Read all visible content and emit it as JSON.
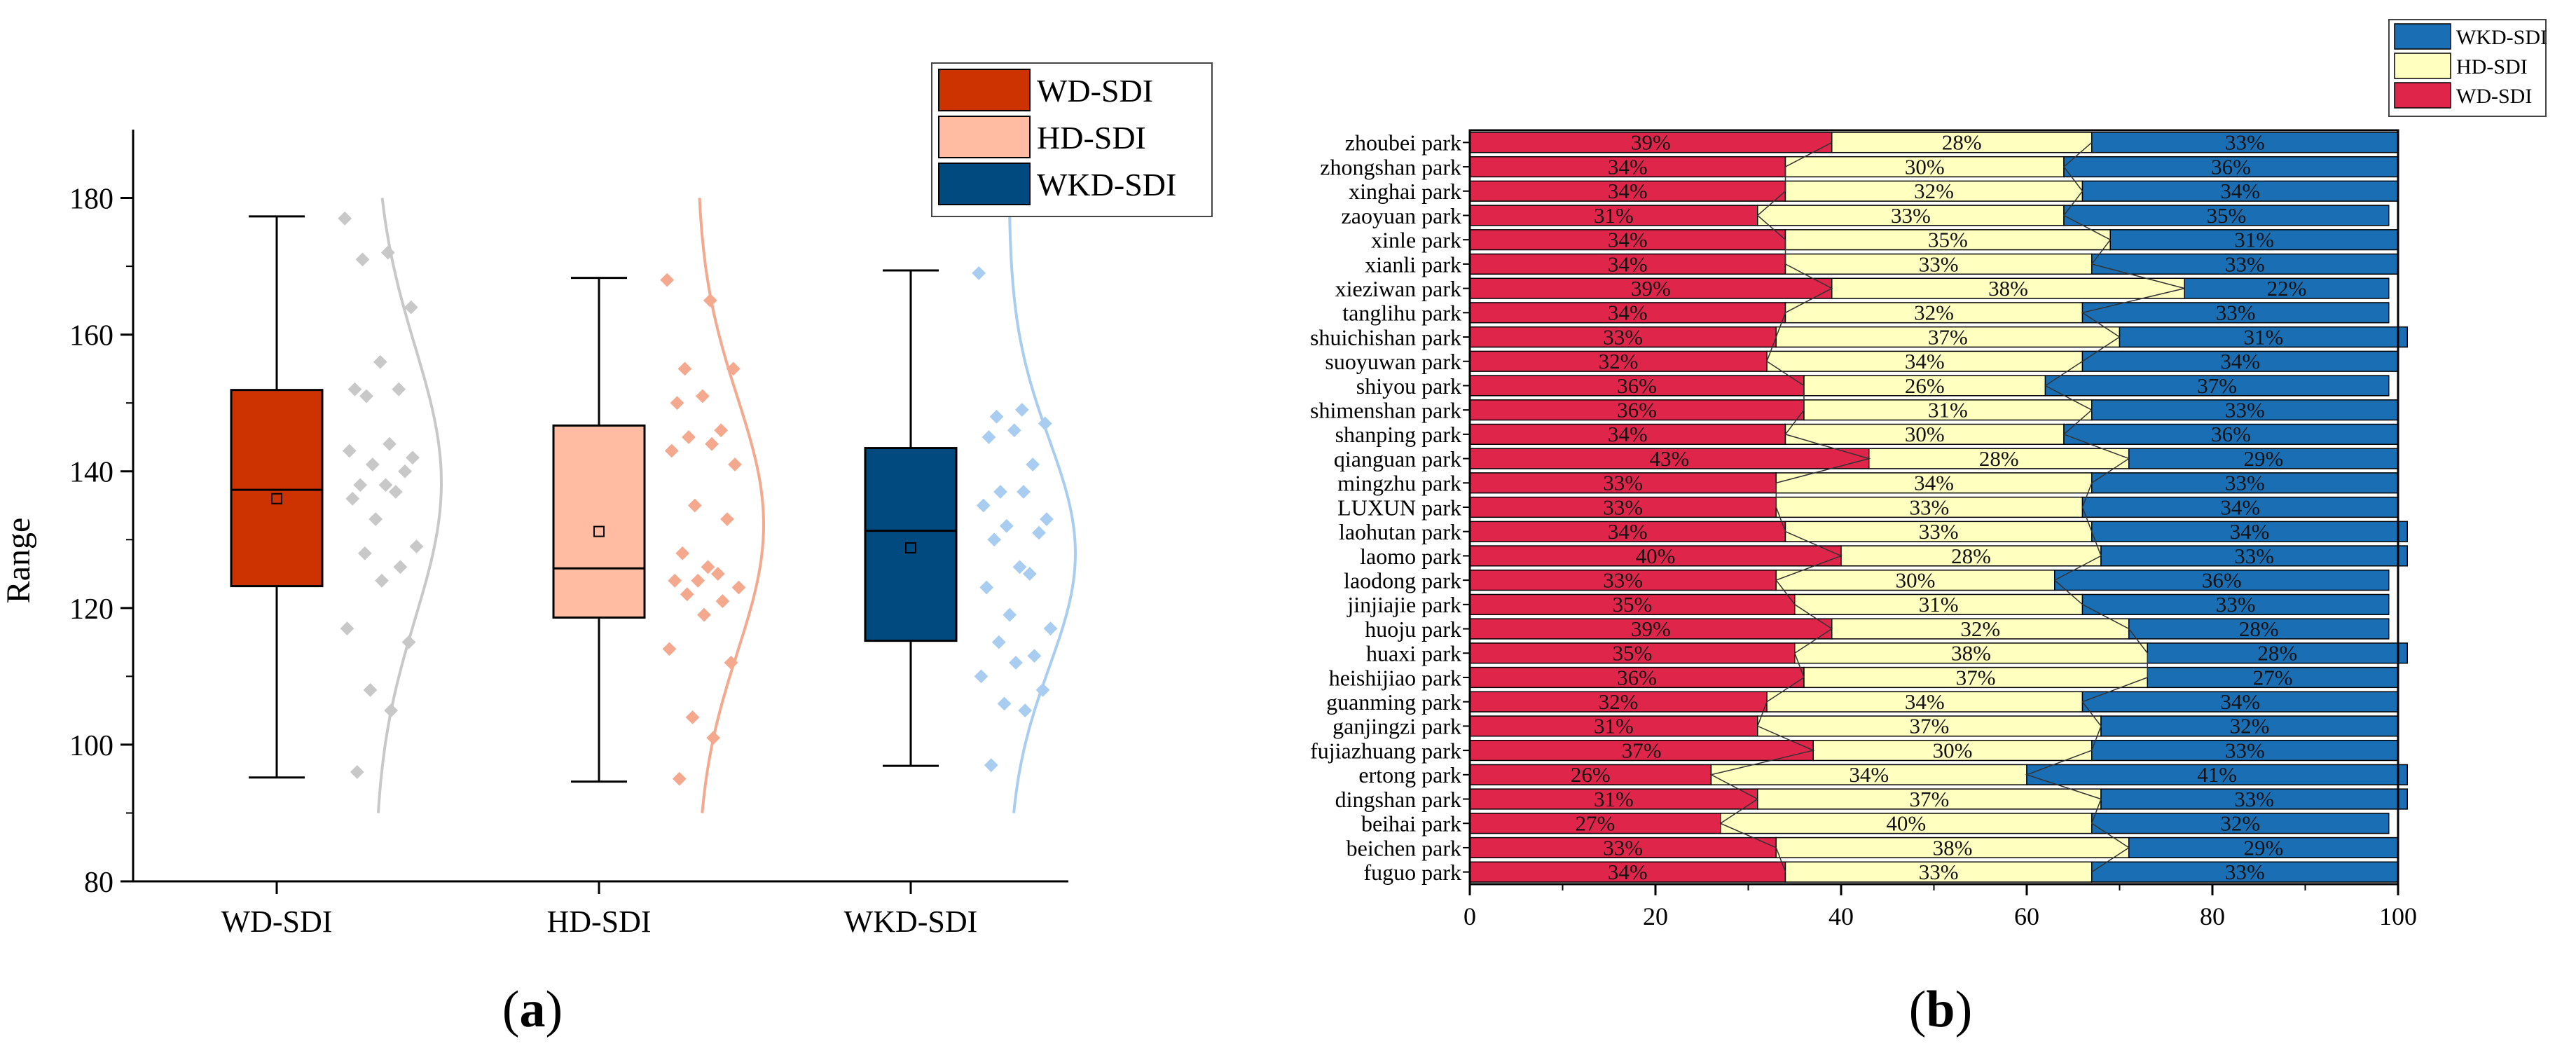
{
  "panel_labels": {
    "a": "a",
    "b": "b"
  },
  "chart_data": [
    {
      "type": "box",
      "ylabel": "Range",
      "ylim": [
        80,
        190
      ],
      "yticks": [
        80,
        100,
        120,
        140,
        160,
        180
      ],
      "categories": [
        "WD-SDI",
        "HD-SDI",
        "WKD-SDI"
      ],
      "legend": [
        "WD-SDI",
        "HD-SDI",
        "WKD-SDI"
      ],
      "legend_position": "top-right",
      "colors": {
        "box_fill": [
          "#cc3300",
          "#ffbca3",
          "#004a80"
        ],
        "scatter": [
          "#c8c8c8",
          "#f4a98f",
          "#a8cdf0"
        ]
      },
      "boxes": [
        {
          "min": 95.2,
          "q1": 123.2,
          "median": 137.3,
          "q3": 151.9,
          "max": 177.3,
          "mean": 136.0
        },
        {
          "min": 94.6,
          "q1": 118.6,
          "median": 125.8,
          "q3": 146.7,
          "max": 168.3,
          "mean": 131.2
        },
        {
          "min": 96.9,
          "q1": 115.2,
          "median": 131.3,
          "q3": 143.4,
          "max": 169.4,
          "mean": 128.8
        }
      ],
      "points": [
        [
          96,
          105,
          108,
          115,
          117,
          124,
          126,
          128,
          129,
          133,
          136,
          137,
          138,
          138,
          140,
          141,
          142,
          143,
          144,
          151,
          152,
          152,
          156,
          164,
          171,
          172,
          177
        ],
        [
          95,
          101,
          104,
          112,
          114,
          119,
          121,
          122,
          123,
          124,
          124,
          125,
          126,
          128,
          133,
          135,
          141,
          143,
          144,
          145,
          146,
          150,
          151,
          155,
          155,
          165,
          168
        ],
        [
          97,
          105,
          106,
          108,
          110,
          112,
          113,
          115,
          117,
          119,
          123,
          125,
          126,
          130,
          131,
          132,
          133,
          135,
          137,
          137,
          141,
          145,
          146,
          147,
          148,
          149,
          169
        ]
      ]
    },
    {
      "type": "bar",
      "orientation": "horizontal",
      "stacked": true,
      "xlim": [
        0,
        100
      ],
      "xticks": [
        0,
        20,
        40,
        60,
        80,
        100
      ],
      "legend_position": "top-right",
      "legend_order": [
        "WKD-SDI",
        "HD-SDI",
        "WD-SDI"
      ],
      "categories": [
        "zhoubei park",
        "zhongshan park",
        "xinghai park",
        "zaoyuan park",
        "xinle park",
        "xianli park",
        "xieziwan park",
        "tanglihu park",
        "shuichishan park",
        "suoyuwan park",
        "shiyou park",
        "shimenshan park",
        "shanping park",
        "qianguan park",
        "mingzhu park",
        "LUXUN park",
        "laohutan park",
        "laomo park",
        "laodong park",
        "jinjiajie park",
        "huoju park",
        "huaxi park",
        "heishijiao park",
        "guanming park",
        "ganjingzi park",
        "fujiazhuang park",
        "ertong park",
        "dingshan park",
        "beihai park",
        "beichen park",
        "fuguo park"
      ],
      "series": [
        {
          "name": "WD-SDI",
          "color": "#e0254b",
          "values": [
            39,
            34,
            34,
            31,
            34,
            34,
            39,
            34,
            33,
            32,
            36,
            36,
            34,
            43,
            33,
            33,
            34,
            40,
            33,
            35,
            39,
            35,
            36,
            32,
            31,
            37,
            26,
            31,
            27,
            33,
            34
          ],
          "labels": [
            "39%",
            "34%",
            "34%",
            "31%",
            "34%",
            "34%",
            "39%",
            "34%",
            "33%",
            "32%",
            "36%",
            "36%",
            "34%",
            "43%",
            "33%",
            "33%",
            "34%",
            "40%",
            "33%",
            "35%",
            "39%",
            "35%",
            "36%",
            "32%",
            "31%",
            "37%",
            "26%",
            "31%",
            "27%",
            "33%",
            "34%"
          ]
        },
        {
          "name": "HD-SDI",
          "color": "#ffffbf",
          "values": [
            28,
            30,
            32,
            33,
            35,
            33,
            38,
            32,
            37,
            34,
            26,
            31,
            30,
            28,
            34,
            33,
            33,
            28,
            30,
            31,
            32,
            38,
            37,
            34,
            37,
            30,
            34,
            37,
            40,
            38,
            33
          ],
          "labels": [
            "28%",
            "30%",
            "32%",
            "33%",
            "35%",
            "33%",
            "38%",
            "32%",
            "37%",
            "34%",
            "26%",
            "31%",
            "30%",
            "28%",
            "34%",
            "33%",
            "33%",
            "28%",
            "30%",
            "31%",
            "32%",
            "38%",
            "37%",
            "34%",
            "37%",
            "30%",
            "34%",
            "37%",
            "40%",
            "38%",
            "33%"
          ]
        },
        {
          "name": "WKD-SDI",
          "color": "#1a6eb4",
          "values": [
            33,
            36,
            34,
            35,
            31,
            33,
            22,
            33,
            31,
            34,
            37,
            33,
            36,
            29,
            33,
            34,
            34,
            33,
            36,
            33,
            28,
            28,
            27,
            34,
            32,
            33,
            41,
            33,
            32,
            29,
            33
          ],
          "labels": [
            "33%",
            "36%",
            "34%",
            "35%",
            "31%",
            "33%",
            "22%",
            "33%",
            "31%",
            "34%",
            "37%",
            "33%",
            "36%",
            "29%",
            "33%",
            "34%",
            "34%",
            "33%",
            "36%",
            "33%",
            "28%",
            "28%",
            "27%",
            "34%",
            "32%",
            "33%",
            "41%",
            "33%",
            "32%",
            "29%",
            "33%"
          ]
        }
      ]
    }
  ]
}
